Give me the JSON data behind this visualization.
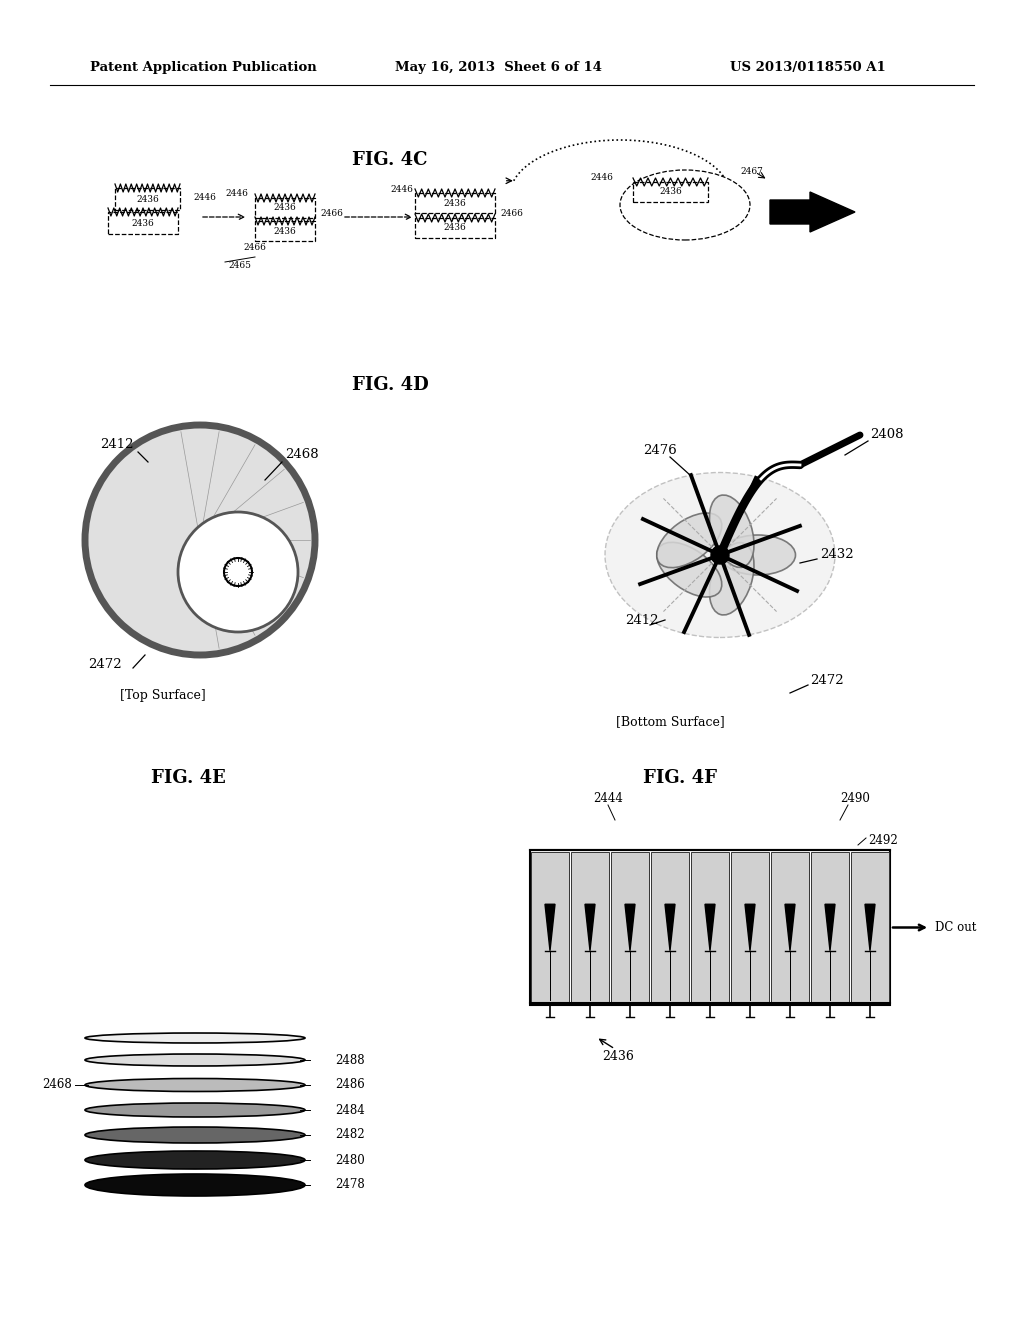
{
  "bg_color": "#ffffff",
  "header_left": "Patent Application Publication",
  "header_mid": "May 16, 2013  Sheet 6 of 14",
  "header_right": "US 2013/0118550 A1",
  "fig4c_title": "FIG. 4C",
  "fig4d_title": "FIG. 4D",
  "fig4e_title": "FIG. 4E",
  "fig4f_title": "FIG. 4F"
}
